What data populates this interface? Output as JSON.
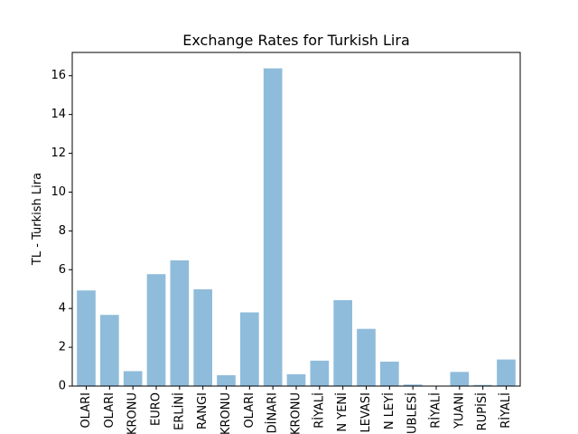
{
  "chart_data": {
    "type": "bar",
    "title": "Exchange Rates for Turkish Lira",
    "xlabel": "",
    "ylabel": "TL - Turkish Lira",
    "ylim": [
      0,
      17.2
    ],
    "yticks": [
      0,
      2,
      4,
      6,
      8,
      10,
      12,
      14,
      16
    ],
    "grid": false,
    "bar_color": "#8fbcdb",
    "categories": [
      "OLARI",
      "OLARI",
      "KRONU",
      "EURO",
      "ERLİNİ",
      "RANGI",
      "KRONU",
      "OLARI",
      "DİNARI",
      "KRONU",
      "RİYALİ",
      "N YENİ",
      "LEVASI",
      "N LEYİ",
      "UBLESİ",
      "RİYALİ",
      "YUANI",
      "RUPİSİ",
      "RİYALİ"
    ],
    "values": [
      4.93,
      3.67,
      0.77,
      5.77,
      6.48,
      4.99,
      0.56,
      3.8,
      16.38,
      0.61,
      1.31,
      4.43,
      2.95,
      1.26,
      0.08,
      0.02,
      0.73,
      0.06,
      1.37
    ]
  }
}
